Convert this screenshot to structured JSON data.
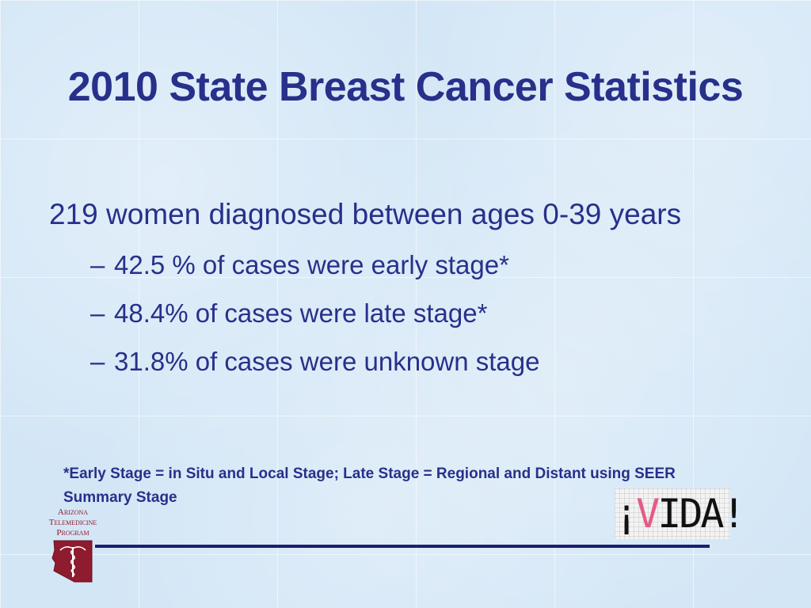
{
  "slide": {
    "title": "2010 State Breast Cancer Statistics",
    "main_bullet": "219 women diagnosed between ages 0-39 years",
    "sub_bullets": [
      {
        "dash": "–",
        "text": "42.5 % of cases were early stage*"
      },
      {
        "dash": "–",
        "text": "48.4% of cases were late stage*"
      },
      {
        "dash": "–",
        "text": "31.8% of cases were unknown stage"
      }
    ],
    "footnote": "*Early Stage = in Situ and Local Stage; Late Stage = Regional and Distant using SEER Summary Stage"
  },
  "logos": {
    "atp": {
      "line1": "Arizona",
      "line2": "Telemedicine",
      "line3": "Program",
      "color": "#8e1b2e"
    },
    "vida": {
      "open": "¡",
      "v": "V",
      "rest": "IDA!",
      "v_color": "#e55a86"
    }
  },
  "colors": {
    "text": "#27308a",
    "background": "#d3e6f6",
    "divider": "#1b1f6e"
  }
}
